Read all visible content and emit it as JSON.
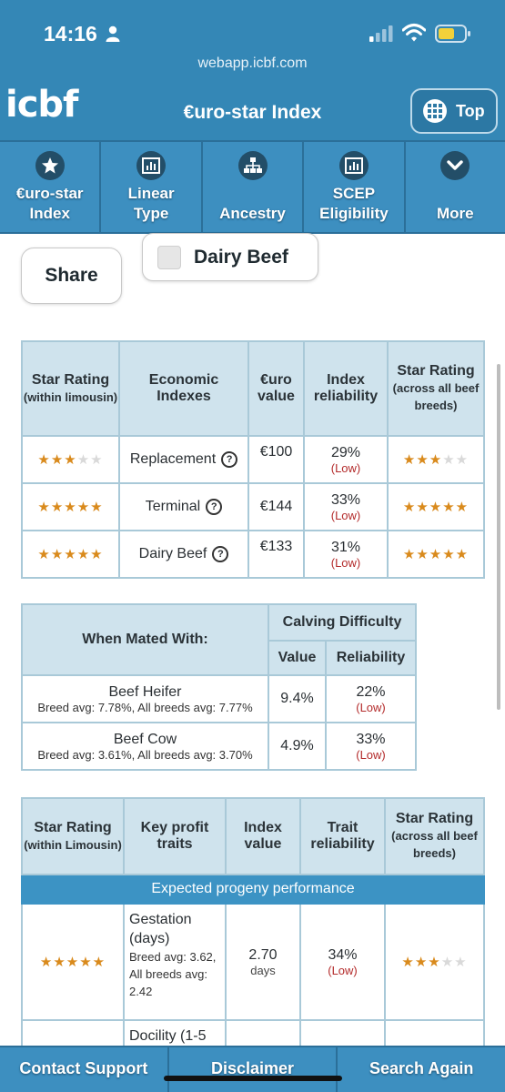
{
  "status_bar": {
    "time": "14:16"
  },
  "browser": {
    "url": "webapp.icbf.com"
  },
  "header": {
    "logo": "icbf",
    "title": "€uro-star Index",
    "top_button": "Top"
  },
  "tabs": [
    {
      "line1": "€uro-star",
      "line2": "Index",
      "icon": "star-icon"
    },
    {
      "line1": "Linear",
      "line2": "Type",
      "icon": "bar-chart-icon"
    },
    {
      "line1": "Ancestry",
      "line2": "",
      "icon": "hierarchy-icon"
    },
    {
      "line1": "SCEP",
      "line2": "Eligibility",
      "icon": "bar-chart-icon"
    },
    {
      "line1": "More",
      "line2": "",
      "icon": "chevron-down-icon"
    }
  ],
  "actions": {
    "share": "Share",
    "dairy_beef": "Dairy Beef"
  },
  "economic_table": {
    "headers": {
      "star_rating": "Star Rating",
      "star_rating_sub": "(within limousin)",
      "economic_indexes": "Economic Indexes",
      "euro_value": "€uro value",
      "index_reliability": "Index reliability",
      "star_rating_all": "Star Rating",
      "star_rating_all_sub": "(across all beef breeds)"
    },
    "rows": [
      {
        "stars_within": 3,
        "name": "Replacement",
        "value": "€100",
        "reliability": "29%",
        "rel_label": "(Low)",
        "stars_across": 3
      },
      {
        "stars_within": 5,
        "name": "Terminal",
        "value": "€144",
        "reliability": "33%",
        "rel_label": "(Low)",
        "stars_across": 5
      },
      {
        "stars_within": 5,
        "name": "Dairy Beef",
        "value": "€133",
        "reliability": "31%",
        "rel_label": "(Low)",
        "stars_across": 5
      }
    ]
  },
  "calving_table": {
    "headers": {
      "mated_with": "When Mated With:",
      "calving_difficulty": "Calving Difficulty",
      "value": "Value",
      "reliability": "Reliability"
    },
    "rows": [
      {
        "name": "Beef Heifer",
        "avg": "Breed avg: 7.78%, All breeds avg: 7.77%",
        "value": "9.4%",
        "reliability": "22%",
        "rel_label": "(Low)"
      },
      {
        "name": "Beef Cow",
        "avg": "Breed avg: 3.61%, All breeds avg: 3.70%",
        "value": "4.9%",
        "reliability": "33%",
        "rel_label": "(Low)"
      }
    ]
  },
  "traits_table": {
    "headers": {
      "star_rating": "Star Rating",
      "star_rating_sub": "(within Limousin)",
      "key_profit_traits": "Key profit traits",
      "index_value": "Index value",
      "trait_reliability": "Trait reliability",
      "star_rating_all": "Star Rating",
      "star_rating_all_sub": "(across all beef breeds)"
    },
    "section": "Expected progeny performance",
    "rows": [
      {
        "stars_within": 5,
        "name": "Gestation (days)",
        "avg": "Breed avg: 3.62, All breeds avg: 2.42",
        "value": "2.70",
        "unit": "days",
        "reliability": "34%",
        "rel_label": "(Low)",
        "stars_across": 3
      },
      {
        "name": "Docility (1-5"
      }
    ]
  },
  "bottom_bar": {
    "contact": "Contact Support",
    "disclaimer": "Disclaimer",
    "search_again": "Search Again"
  }
}
